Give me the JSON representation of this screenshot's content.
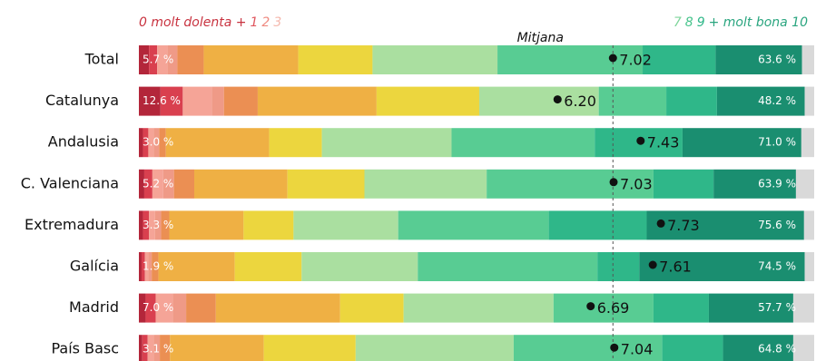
{
  "chart_data": {
    "type": "stacked-bar",
    "categories": [
      "Total",
      "Catalunya",
      "Andalusia",
      "C. Valenciana",
      "Extremadura",
      "Galícia",
      "Madrid",
      "País Basc"
    ],
    "xlim": [
      0,
      100
    ],
    "series": [
      {
        "color": "#b3263a",
        "values": [
          1.5,
          3.2,
          0.6,
          0.8,
          0.6,
          0.4,
          1.0,
          0.5
        ]
      },
      {
        "color": "#d9404f",
        "values": [
          1.2,
          3.3,
          0.8,
          1.2,
          0.9,
          0.5,
          1.5,
          0.8
        ]
      },
      {
        "color": "#f5a497",
        "values": [
          1.5,
          4.3,
          0.8,
          1.6,
          0.9,
          0.5,
          2.5,
          0.9
        ]
      },
      {
        "color": "#ef9a87",
        "values": [
          1.5,
          1.8,
          0.8,
          1.6,
          0.9,
          0.5,
          2.0,
          0.9
        ]
      },
      {
        "color": "#eb8f53",
        "values": [
          3.9,
          5.0,
          1.0,
          3.0,
          1.2,
          1.0,
          4.4,
          1.5
        ]
      },
      {
        "color": "#efb044",
        "values": [
          14.0,
          17.6,
          15.3,
          13.8,
          11.0,
          11.3,
          18.4,
          13.9
        ]
      },
      {
        "color": "#ecd63e",
        "values": [
          11.0,
          15.2,
          7.8,
          11.4,
          7.4,
          9.9,
          9.4,
          13.6
        ]
      },
      {
        "color": "#aadfa0",
        "values": [
          18.5,
          17.7,
          19.2,
          18.1,
          15.5,
          17.2,
          22.2,
          23.4
        ]
      },
      {
        "color": "#58cc93",
        "values": [
          21.5,
          10.0,
          21.2,
          24.7,
          22.3,
          26.6,
          14.8,
          22.0
        ]
      },
      {
        "color": "#2fb789",
        "values": [
          10.8,
          7.5,
          13.0,
          8.9,
          14.5,
          6.2,
          8.2,
          9.0
        ]
      },
      {
        "color": "#1a8e70",
        "values": [
          12.8,
          13.0,
          17.6,
          12.2,
          23.3,
          24.5,
          12.5,
          10.4
        ]
      },
      {
        "color": "#d9d9d9",
        "values": [
          1.8,
          1.4,
          1.9,
          2.7,
          1.5,
          1.4,
          3.1,
          3.1
        ]
      }
    ],
    "low_share": {
      "values": [
        5.7,
        12.6,
        3.0,
        5.2,
        3.3,
        1.9,
        7.0,
        3.1
      ],
      "value_labels": [
        "5.7 %",
        "12.6 %",
        "3.0 %",
        "5.2 %",
        "3.3 %",
        "1.9 %",
        "7.0 %",
        "3.1 %"
      ]
    },
    "high_share": {
      "values": [
        63.6,
        48.2,
        71.0,
        63.9,
        75.6,
        74.5,
        57.7,
        64.8
      ],
      "value_labels": [
        "63.6 %",
        "48.2 %",
        "71.0 %",
        "63.9 %",
        "75.6 %",
        "74.5 %",
        "57.7 %",
        "64.8 %"
      ]
    },
    "means": {
      "xlim": [
        0,
        10
      ],
      "values": [
        7.02,
        6.2,
        7.43,
        7.03,
        7.73,
        7.61,
        6.69,
        7.04
      ],
      "value_labels": [
        "7.02",
        "6.20",
        "7.43",
        "7.03",
        "7.73",
        "7.61",
        "6.69",
        "7.04"
      ]
    },
    "mean_line": {
      "label": "Mitjana",
      "value": 7.02
    },
    "legend_left": [
      {
        "text": "0 molt dolenta +",
        "color": "#c8323f"
      },
      {
        "text": "1",
        "color": "#e0575f"
      },
      {
        "text": "2",
        "color": "#ef8a80"
      },
      {
        "text": "3",
        "color": "#f5b8ad"
      }
    ],
    "legend_right": [
      {
        "text": "7",
        "color": "#7fd59b"
      },
      {
        "text": "8",
        "color": "#47c48c"
      },
      {
        "text": "9",
        "color": "#2fb789"
      },
      {
        "text": "+ molt bona 10",
        "color": "#2aa57f"
      }
    ]
  }
}
